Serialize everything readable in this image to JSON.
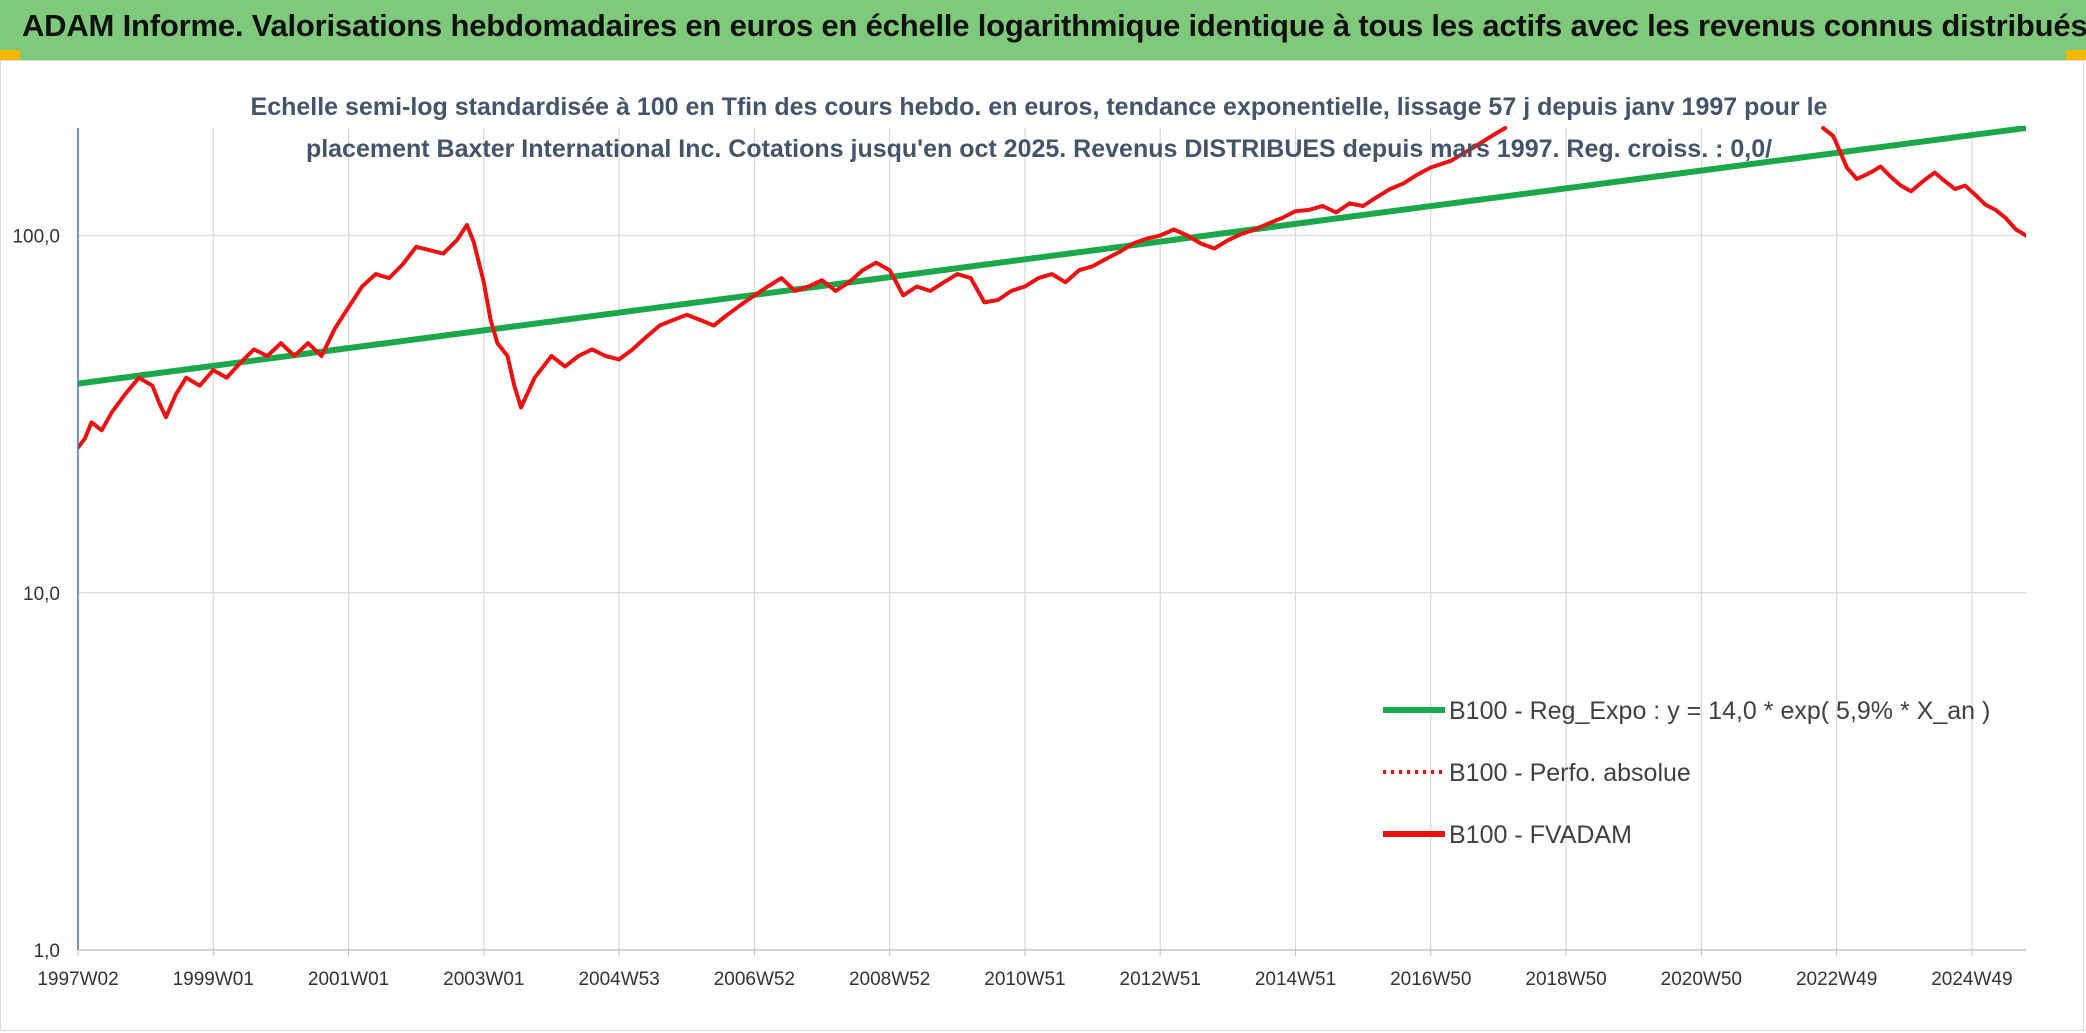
{
  "header": {
    "title": "ADAM Informe. Valorisations hebdomadaires en euros en échelle logarithmique identique à tous les actifs avec les revenus connus distribués",
    "background": "#7fc97a",
    "accent": "#f5b800"
  },
  "chart_data": {
    "type": "line",
    "title_lines": [
      "Echelle semi-log standardisée à 100 en Tfin des cours hebdo. en euros, tendance exponentielle, lissage 57 j depuis janv 1997 pour le",
      "placement Baxter International Inc. Cotations jusqu'en oct 2025. Revenus DISTRIBUES depuis mars 1997. Reg. croiss. : 0,0/"
    ],
    "y_scale": "log",
    "ylim": [
      1,
      200
    ],
    "y_ticks": [
      {
        "value": 1,
        "label": "1,0"
      },
      {
        "value": 10,
        "label": "10,0"
      },
      {
        "value": 100,
        "label": "100,0"
      }
    ],
    "xlim": [
      1997.0,
      2025.8
    ],
    "x_ticks": [
      {
        "value": 1997.0,
        "label": "1997W02"
      },
      {
        "value": 1999.0,
        "label": "1999W01"
      },
      {
        "value": 2001.0,
        "label": "2001W01"
      },
      {
        "value": 2003.0,
        "label": "2003W01"
      },
      {
        "value": 2005.0,
        "label": "2004W53"
      },
      {
        "value": 2007.0,
        "label": "2006W52"
      },
      {
        "value": 2009.0,
        "label": "2008W52"
      },
      {
        "value": 2011.0,
        "label": "2010W51"
      },
      {
        "value": 2013.0,
        "label": "2012W51"
      },
      {
        "value": 2015.0,
        "label": "2014W51"
      },
      {
        "value": 2017.0,
        "label": "2016W50"
      },
      {
        "value": 2019.0,
        "label": "2018W50"
      },
      {
        "value": 2021.0,
        "label": "2020W50"
      },
      {
        "value": 2023.0,
        "label": "2022W49"
      },
      {
        "value": 2025.0,
        "label": "2024W49"
      }
    ],
    "grid": true,
    "legend_position": "bottom-right",
    "series": [
      {
        "name": "B100 - Reg_Expo : y = 14,0 * exp( 5,9% *  X_an )",
        "color": "#1aa84a",
        "style": "solid",
        "points": [
          [
            1997.0,
            38.5
          ],
          [
            2025.8,
            200
          ]
        ]
      },
      {
        "name": "B100 - Perfo. absolue",
        "color": "#ee1111",
        "style": "dotted",
        "points": []
      },
      {
        "name": "B100 - FVADAM",
        "color": "#ee1111",
        "style": "solid",
        "points": [
          [
            1997.0,
            25.5
          ],
          [
            1997.1,
            27
          ],
          [
            1997.2,
            30
          ],
          [
            1997.35,
            28.5
          ],
          [
            1997.5,
            32
          ],
          [
            1997.7,
            36
          ],
          [
            1997.9,
            40
          ],
          [
            1998.1,
            38
          ],
          [
            1998.2,
            34
          ],
          [
            1998.3,
            31
          ],
          [
            1998.45,
            36
          ],
          [
            1998.6,
            40
          ],
          [
            1998.8,
            38
          ],
          [
            1999.0,
            42
          ],
          [
            1999.2,
            40
          ],
          [
            1999.4,
            44
          ],
          [
            1999.6,
            48
          ],
          [
            1999.8,
            46
          ],
          [
            2000.0,
            50
          ],
          [
            2000.2,
            46
          ],
          [
            2000.4,
            50
          ],
          [
            2000.6,
            46
          ],
          [
            2000.8,
            55
          ],
          [
            2001.0,
            63
          ],
          [
            2001.2,
            72
          ],
          [
            2001.4,
            78
          ],
          [
            2001.6,
            76
          ],
          [
            2001.8,
            83
          ],
          [
            2002.0,
            93
          ],
          [
            2002.2,
            91
          ],
          [
            2002.4,
            89
          ],
          [
            2002.6,
            97
          ],
          [
            2002.75,
            107
          ],
          [
            2002.85,
            96
          ],
          [
            2003.0,
            74
          ],
          [
            2003.1,
            58
          ],
          [
            2003.2,
            50
          ],
          [
            2003.35,
            46
          ],
          [
            2003.45,
            38
          ],
          [
            2003.55,
            33
          ],
          [
            2003.75,
            40
          ],
          [
            2004.0,
            46
          ],
          [
            2004.2,
            43
          ],
          [
            2004.4,
            46
          ],
          [
            2004.6,
            48
          ],
          [
            2004.8,
            46
          ],
          [
            2005.0,
            45
          ],
          [
            2005.2,
            48
          ],
          [
            2005.4,
            52
          ],
          [
            2005.6,
            56
          ],
          [
            2005.8,
            58
          ],
          [
            2006.0,
            60
          ],
          [
            2006.2,
            58
          ],
          [
            2006.4,
            56
          ],
          [
            2006.6,
            60
          ],
          [
            2006.8,
            64
          ],
          [
            2007.0,
            68
          ],
          [
            2007.2,
            72
          ],
          [
            2007.4,
            76
          ],
          [
            2007.6,
            70
          ],
          [
            2007.8,
            72
          ],
          [
            2008.0,
            75
          ],
          [
            2008.2,
            70
          ],
          [
            2008.4,
            74
          ],
          [
            2008.6,
            80
          ],
          [
            2008.8,
            84
          ],
          [
            2009.0,
            80
          ],
          [
            2009.2,
            68
          ],
          [
            2009.4,
            72
          ],
          [
            2009.6,
            70
          ],
          [
            2009.8,
            74
          ],
          [
            2010.0,
            78
          ],
          [
            2010.2,
            76
          ],
          [
            2010.4,
            65
          ],
          [
            2010.6,
            66
          ],
          [
            2010.8,
            70
          ],
          [
            2011.0,
            72
          ],
          [
            2011.2,
            76
          ],
          [
            2011.4,
            78
          ],
          [
            2011.6,
            74
          ],
          [
            2011.8,
            80
          ],
          [
            2012.0,
            82
          ],
          [
            2012.2,
            86
          ],
          [
            2012.4,
            90
          ],
          [
            2012.6,
            95
          ],
          [
            2012.8,
            98
          ],
          [
            2013.0,
            100
          ],
          [
            2013.2,
            104
          ],
          [
            2013.4,
            100
          ],
          [
            2013.6,
            95
          ],
          [
            2013.8,
            92
          ],
          [
            2014.0,
            97
          ],
          [
            2014.2,
            101
          ],
          [
            2014.4,
            104
          ],
          [
            2014.6,
            108
          ],
          [
            2014.8,
            112
          ],
          [
            2015.0,
            117
          ],
          [
            2015.2,
            118
          ],
          [
            2015.4,
            121
          ],
          [
            2015.6,
            116
          ],
          [
            2015.8,
            123
          ],
          [
            2016.0,
            121
          ],
          [
            2016.2,
            128
          ],
          [
            2016.4,
            135
          ],
          [
            2016.6,
            140
          ],
          [
            2016.8,
            148
          ],
          [
            2017.0,
            155
          ],
          [
            2017.3,
            162
          ],
          [
            2017.6,
            175
          ],
          [
            2017.9,
            190
          ],
          [
            2018.1,
            200
          ]
        ]
      },
      {
        "name": "B100 - FVADAM (suite)",
        "color": "#ee1111",
        "style": "solid",
        "points": [
          [
            2022.8,
            200
          ],
          [
            2022.95,
            190
          ],
          [
            2023.05,
            172
          ],
          [
            2023.15,
            155
          ],
          [
            2023.3,
            144
          ],
          [
            2023.5,
            150
          ],
          [
            2023.65,
            156
          ],
          [
            2023.8,
            146
          ],
          [
            2023.95,
            138
          ],
          [
            2024.1,
            133
          ],
          [
            2024.3,
            143
          ],
          [
            2024.45,
            150
          ],
          [
            2024.6,
            142
          ],
          [
            2024.75,
            135
          ],
          [
            2024.9,
            138
          ],
          [
            2025.05,
            130
          ],
          [
            2025.2,
            122
          ],
          [
            2025.35,
            118
          ],
          [
            2025.5,
            112
          ],
          [
            2025.65,
            104
          ],
          [
            2025.8,
            100
          ]
        ]
      }
    ]
  }
}
